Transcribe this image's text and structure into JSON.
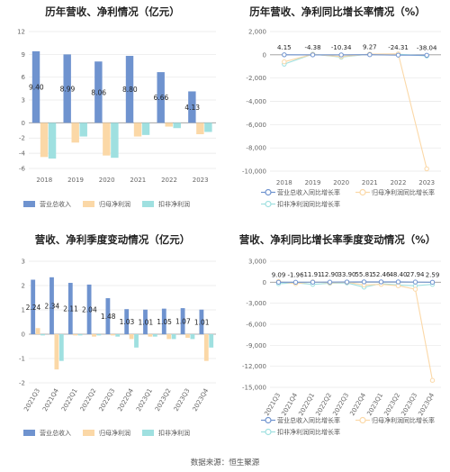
{
  "footer": {
    "source": "数据来源：恒生聚源"
  },
  "colors": {
    "revenue": "#6f93cf",
    "parent_profit": "#fbd8a7",
    "deducted_profit": "#9fe0e0",
    "grid": "#e6e6e6",
    "axis": "#999999"
  },
  "chart_data": [
    {
      "id": "annual_amount",
      "type": "bar",
      "title": "历年营收、净利情况（亿元）",
      "categories": [
        "2018",
        "2019",
        "2020",
        "2021",
        "2022",
        "2023"
      ],
      "series": [
        {
          "name": "营业总收入",
          "values": [
            9.4,
            8.99,
            8.06,
            8.8,
            6.66,
            4.13
          ],
          "labels": [
            "9.40",
            "8.99",
            "8.06",
            "8.80",
            "6.66",
            "4.13"
          ]
        },
        {
          "name": "归母净利润",
          "values": [
            -4.5,
            -2.6,
            -4.3,
            -1.8,
            -0.5,
            -1.5
          ]
        },
        {
          "name": "扣非净利润",
          "values": [
            -4.7,
            -1.8,
            -4.6,
            -1.6,
            -0.7,
            -1.2
          ]
        }
      ],
      "ylim": [
        -6,
        12
      ],
      "yticks": [
        -6,
        -4,
        -2,
        0,
        3,
        6,
        9,
        12
      ],
      "legend": "bottom",
      "grid": true
    },
    {
      "id": "annual_growth",
      "type": "line",
      "title": "历年营收、净利同比增长率情况（%）",
      "categories": [
        "2018",
        "2019",
        "2020",
        "2021",
        "2022",
        "2023"
      ],
      "series": [
        {
          "name": "营业总收入同比增长率",
          "values": [
            4.15,
            -4.38,
            -10.34,
            9.27,
            -24.31,
            -38.04
          ],
          "labels": [
            "4.15",
            "-4.38",
            "-10.34",
            "9.27",
            "-24.31",
            "-38.04"
          ]
        },
        {
          "name": "归母净利润同比增长率",
          "values": [
            -600,
            40,
            -150,
            60,
            80,
            -9800
          ]
        },
        {
          "name": "扣非净利润同比增长率",
          "values": [
            -800,
            60,
            -200,
            60,
            50,
            -100
          ]
        }
      ],
      "ylim": [
        -10000,
        2000
      ],
      "yticks": [
        -10000,
        -8000,
        -6000,
        -4000,
        -2000,
        0,
        2000
      ],
      "ytick_labels": [
        "-10,000",
        "-8,000",
        "-6,000",
        "-4,000",
        "-2,000",
        "0",
        "2,000"
      ],
      "legend": "bottom",
      "grid": true
    },
    {
      "id": "quarterly_amount",
      "type": "bar",
      "title": "营收、净利季度变动情况（亿元）",
      "categories": [
        "2021Q3",
        "2021Q4",
        "2022Q1",
        "2022Q2",
        "2022Q3",
        "2022Q4",
        "2023Q1",
        "2023Q2",
        "2023Q3",
        "2023Q4"
      ],
      "series": [
        {
          "name": "营业总收入",
          "values": [
            2.24,
            2.34,
            2.11,
            2.04,
            1.48,
            1.03,
            1.01,
            1.05,
            1.07,
            1.01
          ],
          "labels": [
            "2.24",
            "2.34",
            "2.11",
            "2.04",
            "1.48",
            "1.03",
            "1.01",
            "1.05",
            "1.07",
            "1.01"
          ]
        },
        {
          "name": "归母净利润",
          "values": [
            0.25,
            -1.45,
            -0.05,
            -0.1,
            -0.05,
            -0.2,
            -0.1,
            -0.2,
            -0.15,
            -1.1
          ]
        },
        {
          "name": "扣非净利润",
          "values": [
            -0.05,
            -1.1,
            -0.05,
            -0.05,
            -0.1,
            -0.55,
            -0.1,
            -0.2,
            -0.2,
            -0.55
          ]
        }
      ],
      "ylim": [
        -2,
        3
      ],
      "yticks": [
        -2,
        -1,
        0,
        1,
        2,
        3
      ],
      "legend": "bottom",
      "grid": true
    },
    {
      "id": "quarterly_growth",
      "type": "line",
      "title": "营收、净利同比增长率季度变动情况（%）",
      "categories": [
        "2021Q3",
        "2021Q4",
        "2022Q1",
        "2022Q2",
        "2022Q3",
        "2022Q4",
        "2023Q1",
        "2023Q2",
        "2023Q3",
        "2023Q4"
      ],
      "series": [
        {
          "name": "营业总收入同比增长率",
          "values": [
            9.09,
            -1.96,
            11.91,
            12.9,
            33.9,
            55.81,
            52.46,
            48.4,
            27.94,
            2.59
          ],
          "labels": [
            "9.09",
            "-1.96",
            "11.91",
            "12.90",
            "33.90",
            "55.81",
            "52.46",
            "48.40",
            "27.94",
            "2.59"
          ]
        },
        {
          "name": "归母净利润同比增长率",
          "values": [
            100,
            -200,
            50,
            -100,
            0,
            -400,
            -300,
            -500,
            -1000,
            -14000
          ]
        },
        {
          "name": "扣非净利润同比增长率",
          "values": [
            -200,
            -100,
            -300,
            -150,
            -100,
            -700,
            -200,
            -400,
            -500,
            -300
          ]
        }
      ],
      "ylim": [
        -15000,
        3000
      ],
      "yticks": [
        -15000,
        -12000,
        -9000,
        -6000,
        -3000,
        0,
        3000
      ],
      "ytick_labels": [
        "-15,000",
        "-12,000",
        "-9,000",
        "-6,000",
        "-3,000",
        "0",
        "3,000"
      ],
      "legend": "bottom",
      "grid": true
    }
  ]
}
